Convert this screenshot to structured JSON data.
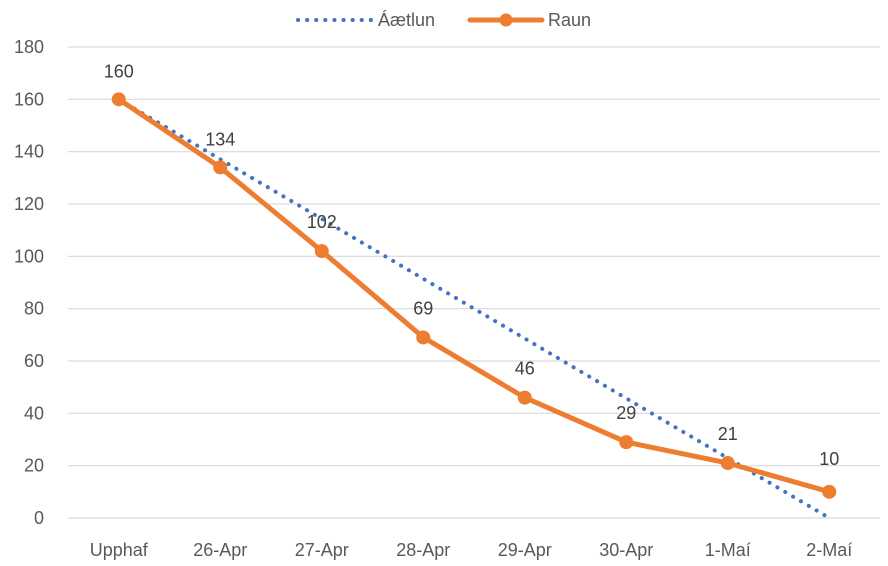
{
  "chart_data": {
    "type": "line",
    "title": "",
    "xlabel": "",
    "ylabel": "",
    "categories": [
      "Upphaf",
      "26-Apr",
      "27-Apr",
      "28-Apr",
      "29-Apr",
      "30-Apr",
      "1-Maí",
      "2-Maí"
    ],
    "ylim": [
      0,
      180
    ],
    "yticks": [
      0,
      20,
      40,
      60,
      80,
      100,
      120,
      140,
      160,
      180
    ],
    "grid": true,
    "legend_position": "top",
    "series": [
      {
        "name": "Áætlun",
        "values": [
          160,
          137.1,
          114.3,
          91.4,
          68.6,
          45.7,
          22.9,
          0
        ],
        "color": "#4472c4",
        "style": "dotted",
        "data_labels": false
      },
      {
        "name": "Raun",
        "values": [
          160,
          134,
          102,
          69,
          46,
          29,
          21,
          10
        ],
        "color": "#ed7d31",
        "style": "solid-with-markers",
        "data_labels": true
      }
    ]
  }
}
